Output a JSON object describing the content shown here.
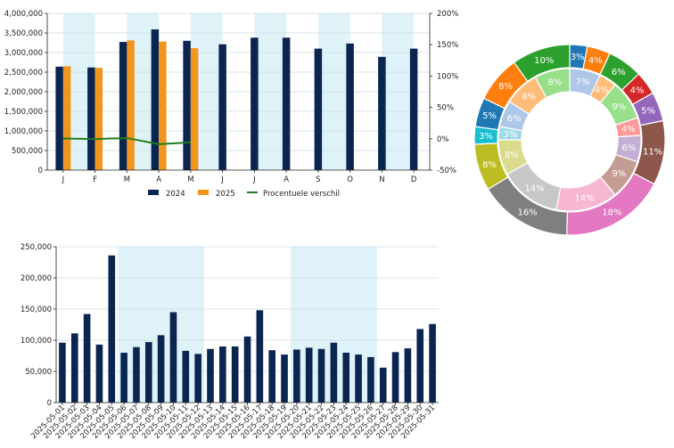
{
  "colors": {
    "navy": "#0a2550",
    "orange": "#f0961e",
    "green": "#1e7d1e",
    "band": "#dff2f8",
    "grid": "#c9dde2"
  },
  "chart_data": [
    {
      "type": "bar",
      "title": "",
      "categories": [
        "J",
        "F",
        "M",
        "A",
        "M",
        "J",
        "J",
        "A",
        "S",
        "O",
        "N",
        "D"
      ],
      "series": [
        {
          "name": "2024",
          "values": [
            2640000,
            2620000,
            3270000,
            3590000,
            3300000,
            3210000,
            3380000,
            3380000,
            3100000,
            3230000,
            2890000,
            3100000
          ]
        },
        {
          "name": "2025",
          "values": [
            2650000,
            2610000,
            3310000,
            3280000,
            3110000,
            null,
            null,
            null,
            null,
            null,
            null,
            null
          ]
        },
        {
          "name": "Procentuele verschil",
          "type": "line",
          "axis": "right",
          "values": [
            0.4,
            -0.4,
            1.2,
            -8.6,
            -5.8,
            null,
            null,
            null,
            null,
            null,
            null,
            null
          ]
        }
      ],
      "ylim": [
        0,
        4000000
      ],
      "y_ticks": [
        "0",
        "500,000",
        "1,000,000",
        "1,500,000",
        "2,000,000",
        "2,500,000",
        "3,000,000",
        "3,500,000",
        "4,000,000"
      ],
      "y2lim": [
        -50,
        200
      ],
      "y2_ticks": [
        "-50%",
        "0%",
        "50%",
        "100%",
        "150%",
        "200%"
      ],
      "legend_position": "bottom",
      "grid": true
    },
    {
      "type": "bar",
      "title": "",
      "categories": [
        "2025-05-01",
        "2025-05-02",
        "2025-05-03",
        "2025-05-04",
        "2025-05-05",
        "2025-05-06",
        "2025-05-07",
        "2025-05-08",
        "2025-05-09",
        "2025-05-10",
        "2025-05-11",
        "2025-05-12",
        "2025-05-13",
        "2025-05-14",
        "2025-05-15",
        "2025-05-16",
        "2025-05-17",
        "2025-05-18",
        "2025-05-19",
        "2025-05-20",
        "2025-05-21",
        "2025-05-22",
        "2025-05-23",
        "2025-05-24",
        "2025-05-25",
        "2025-05-26",
        "2025-05-27",
        "2025-05-28",
        "2025-05-29",
        "2025-05-30",
        "2025-05-31"
      ],
      "values": [
        96000,
        111000,
        142000,
        93000,
        236000,
        80000,
        89000,
        97000,
        108000,
        145000,
        83000,
        78000,
        86000,
        90000,
        90000,
        106000,
        148000,
        84000,
        77000,
        85000,
        88000,
        86000,
        96000,
        80000,
        77000,
        73000,
        56000,
        81000,
        87000,
        118000,
        126000
      ],
      "ylim": [
        0,
        250000
      ],
      "y_ticks": [
        "0",
        "50,000",
        "100,000",
        "150,000",
        "200,000",
        "250,000"
      ],
      "grid": true
    },
    {
      "type": "pie",
      "variant": "nested-donut",
      "title": "",
      "outer_ring": [
        {
          "value": 3,
          "label": "3%",
          "color": "#1f77b4"
        },
        {
          "value": 4,
          "label": "4%",
          "color": "#ff7f0e"
        },
        {
          "value": 6,
          "label": "6%",
          "color": "#2ca02c"
        },
        {
          "value": 4,
          "label": "4%",
          "color": "#d62728"
        },
        {
          "value": 5,
          "label": "5%",
          "color": "#9467bd"
        },
        {
          "value": 11,
          "label": "11%",
          "color": "#8c564b"
        },
        {
          "value": 18,
          "label": "18%",
          "color": "#e377c2"
        },
        {
          "value": 16,
          "label": "16%",
          "color": "#7f7f7f"
        },
        {
          "value": 8,
          "label": "8%",
          "color": "#bcbd22"
        },
        {
          "value": 3,
          "label": "3%",
          "color": "#17becf"
        },
        {
          "value": 5,
          "label": "5%",
          "color": "#1f77b4"
        },
        {
          "value": 8,
          "label": "8%",
          "color": "#ff7f0e"
        },
        {
          "value": 10,
          "label": "10%",
          "color": "#2ca02c"
        }
      ],
      "inner_ring": [
        {
          "value": 7,
          "label": "7%",
          "color": "#aec7e8"
        },
        {
          "value": 4,
          "label": "4%",
          "color": "#ffbb78"
        },
        {
          "value": 9,
          "label": "9%",
          "color": "#98df8a"
        },
        {
          "value": 4,
          "label": "4%",
          "color": "#ff9896"
        },
        {
          "value": 6,
          "label": "6%",
          "color": "#c5b0d5"
        },
        {
          "value": 9,
          "label": "9%",
          "color": "#c49c94"
        },
        {
          "value": 14,
          "label": "14%",
          "color": "#f7b6d2"
        },
        {
          "value": 14,
          "label": "14%",
          "color": "#c7c7c7"
        },
        {
          "value": 8,
          "label": "8%",
          "color": "#dbdb8d"
        },
        {
          "value": 3,
          "label": "3%",
          "color": "#9edae5"
        },
        {
          "value": 6,
          "label": "6%",
          "color": "#aec7e8"
        },
        {
          "value": 8,
          "label": "8%",
          "color": "#ffbb78"
        },
        {
          "value": 8,
          "label": "8%",
          "color": "#98df8a"
        }
      ]
    }
  ]
}
